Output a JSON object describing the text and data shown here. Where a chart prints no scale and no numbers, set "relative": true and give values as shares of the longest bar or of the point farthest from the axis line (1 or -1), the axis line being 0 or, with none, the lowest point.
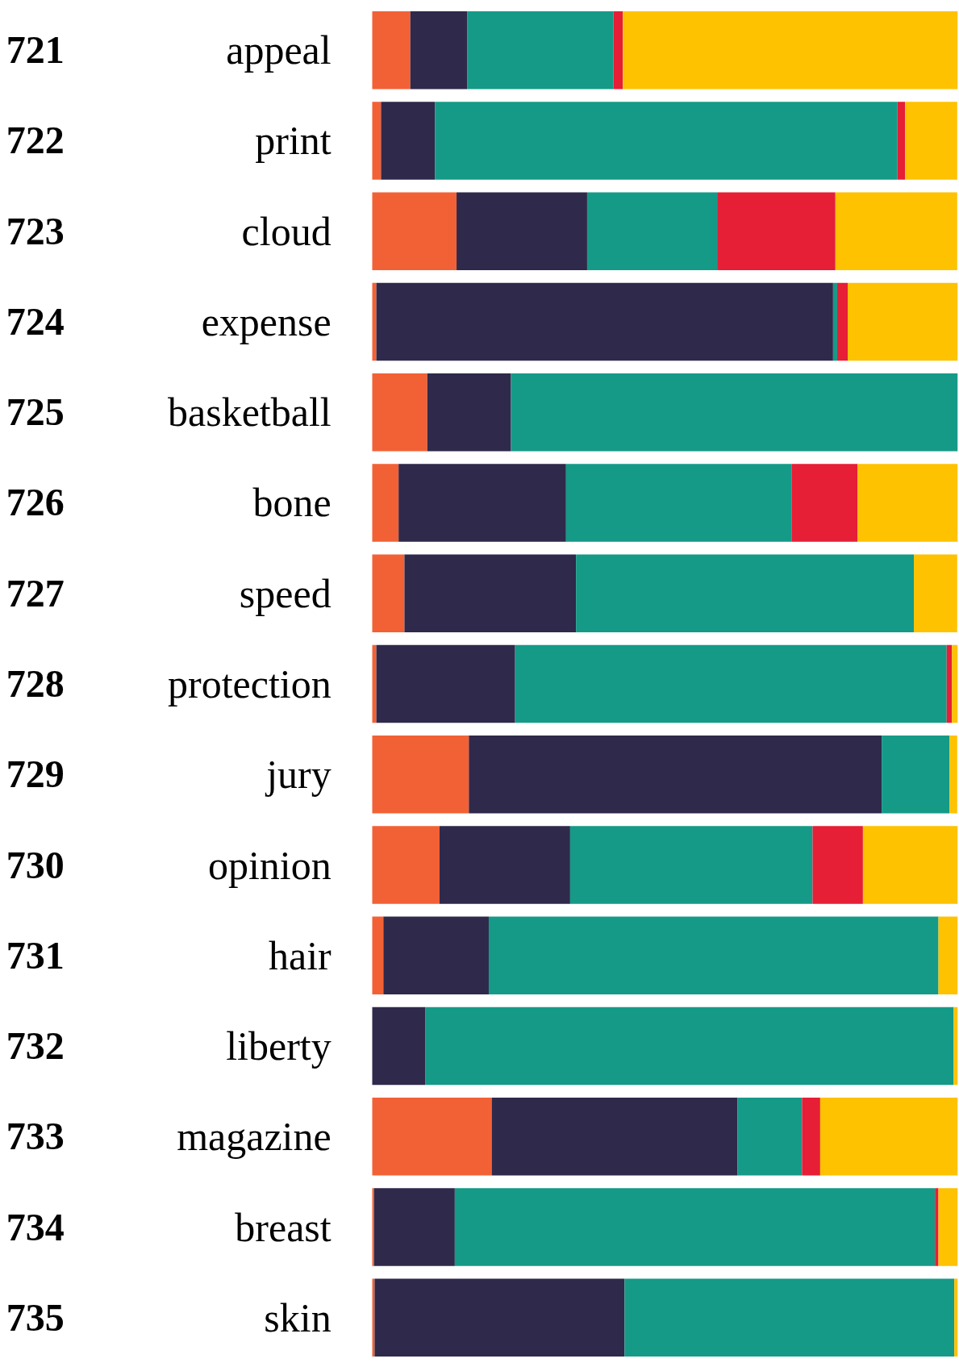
{
  "chart_data": {
    "type": "bar",
    "orientation": "horizontal",
    "stacked": true,
    "relative": true,
    "categories": [
      "appeal",
      "print",
      "cloud",
      "expense",
      "basketball",
      "bone",
      "speed",
      "protection",
      "jury",
      "opinion",
      "hair",
      "liberty",
      "magazine",
      "breast",
      "skin"
    ],
    "annotations": [
      "721",
      "722",
      "723",
      "724",
      "725",
      "726",
      "727",
      "728",
      "729",
      "730",
      "731",
      "732",
      "733",
      "734",
      "735"
    ],
    "series": [
      {
        "color": "#f26135",
        "values": [
          0.065,
          0.015,
          0.144,
          0.007,
          0.094,
          0.045,
          0.055,
          0.007,
          0.165,
          0.115,
          0.019,
          0,
          0.204,
          0.003,
          0.004
        ]
      },
      {
        "color": "#2f294b",
        "values": [
          0.097,
          0.092,
          0.223,
          0.78,
          0.143,
          0.286,
          0.293,
          0.237,
          0.705,
          0.223,
          0.18,
          0.091,
          0.42,
          0.138,
          0.427
        ]
      },
      {
        "color": "#159a87",
        "values": [
          0.25,
          0.79,
          0.222,
          0.007,
          0.763,
          0.385,
          0.577,
          0.737,
          0.116,
          0.414,
          0.768,
          0.902,
          0.11,
          0.82,
          0.563
        ]
      },
      {
        "color": "#e61e36",
        "values": [
          0.016,
          0.013,
          0.202,
          0.018,
          0,
          0.113,
          0,
          0.009,
          0,
          0.086,
          0,
          0,
          0.031,
          0.006,
          0
        ]
      },
      {
        "color": "#fec200",
        "values": [
          0.572,
          0.089,
          0.208,
          0.188,
          0,
          0.171,
          0.074,
          0.01,
          0.013,
          0.162,
          0.033,
          0.007,
          0.235,
          0.033,
          0.006
        ]
      }
    ]
  }
}
